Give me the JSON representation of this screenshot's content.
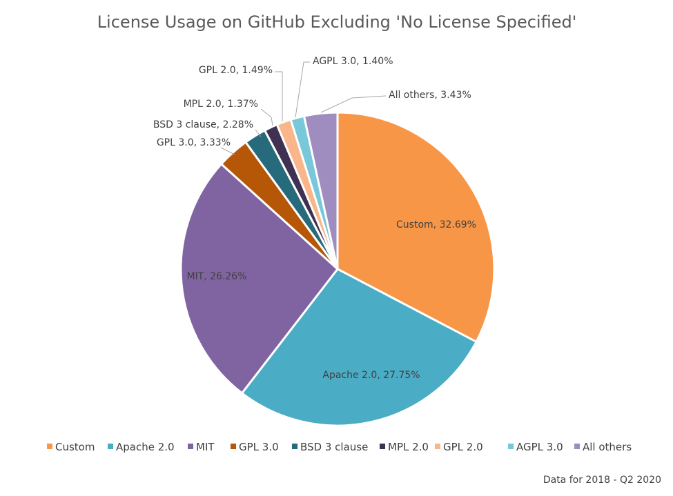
{
  "chart_data": {
    "type": "pie",
    "title": "License Usage on GitHub Excluding 'No License Specified'",
    "footnote": "Data for 2018 - Q2 2020",
    "legend_position": "bottom",
    "slices": [
      {
        "name": "Custom",
        "label": "Custom, 32.69%",
        "value": 32.69,
        "color": "#F79646"
      },
      {
        "name": "Apache 2.0",
        "label": "Apache 2.0, 27.75%",
        "value": 27.75,
        "color": "#4BACC6"
      },
      {
        "name": "MIT",
        "label": "MIT, 26.26%",
        "value": 26.26,
        "color": "#8064A2"
      },
      {
        "name": "GPL 3.0",
        "label": "GPL 3.0, 3.33%",
        "value": 3.33,
        "color": "#B65708"
      },
      {
        "name": "BSD 3 clause",
        "label": "BSD 3 clause, 2.28%",
        "value": 2.28,
        "color": "#276A7C"
      },
      {
        "name": "MPL 2.0",
        "label": "MPL 2.0, 1.37%",
        "value": 1.37,
        "color": "#3F3151"
      },
      {
        "name": "GPL 2.0",
        "label": "GPL 2.0, 1.49%",
        "value": 1.49,
        "color": "#FAB68B"
      },
      {
        "name": "AGPL 3.0",
        "label": "AGPL 3.0, 1.40%",
        "value": 1.4,
        "color": "#79C8DA"
      },
      {
        "name": "All others",
        "label": "All others, 3.43%",
        "value": 3.43,
        "color": "#A08DC0"
      }
    ]
  }
}
